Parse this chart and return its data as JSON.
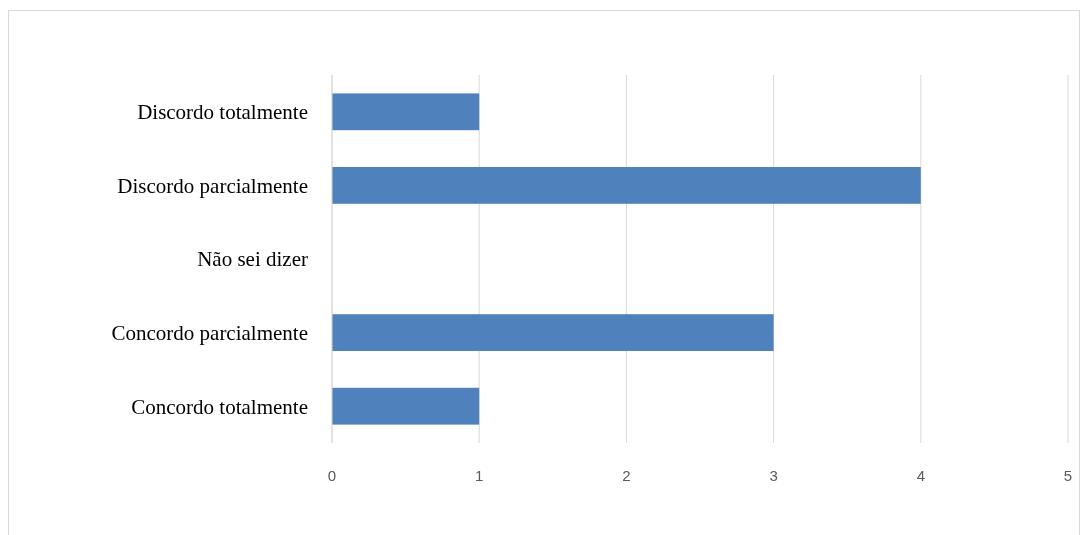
{
  "chart_data": {
    "type": "bar",
    "orientation": "horizontal",
    "categories": [
      "Discordo totalmente",
      "Discordo parcialmente",
      "Não sei dizer",
      "Concordo parcialmente",
      "Concordo totalmente"
    ],
    "values": [
      1,
      4,
      0,
      3,
      1
    ],
    "color": "#4f81bd",
    "xlim": [
      0,
      5
    ],
    "xticks": [
      0,
      1,
      2,
      3,
      4,
      5
    ],
    "grid": "x"
  }
}
